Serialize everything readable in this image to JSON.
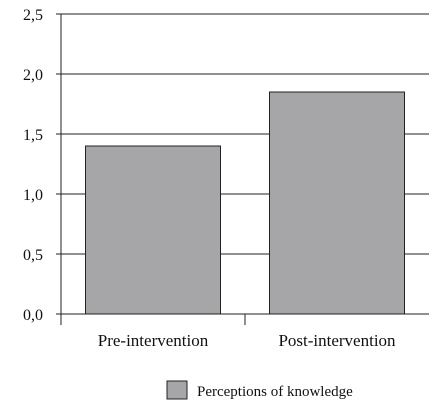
{
  "chart_data": {
    "type": "bar",
    "categories": [
      "Pre-intervention",
      "Post-intervention"
    ],
    "series": [
      {
        "name": "Perceptions of knowledge",
        "values": [
          1.4,
          1.85
        ]
      }
    ],
    "ylim": [
      0,
      2.5
    ],
    "yticks": [
      "0,0",
      "0,5",
      "1,0",
      "1,5",
      "2,0",
      "2,5"
    ],
    "grid": true,
    "legend_position": "bottom-right",
    "bar_color": "#a6a6a9",
    "bar_edge_color": "#222222",
    "grid_color": "#222222"
  }
}
